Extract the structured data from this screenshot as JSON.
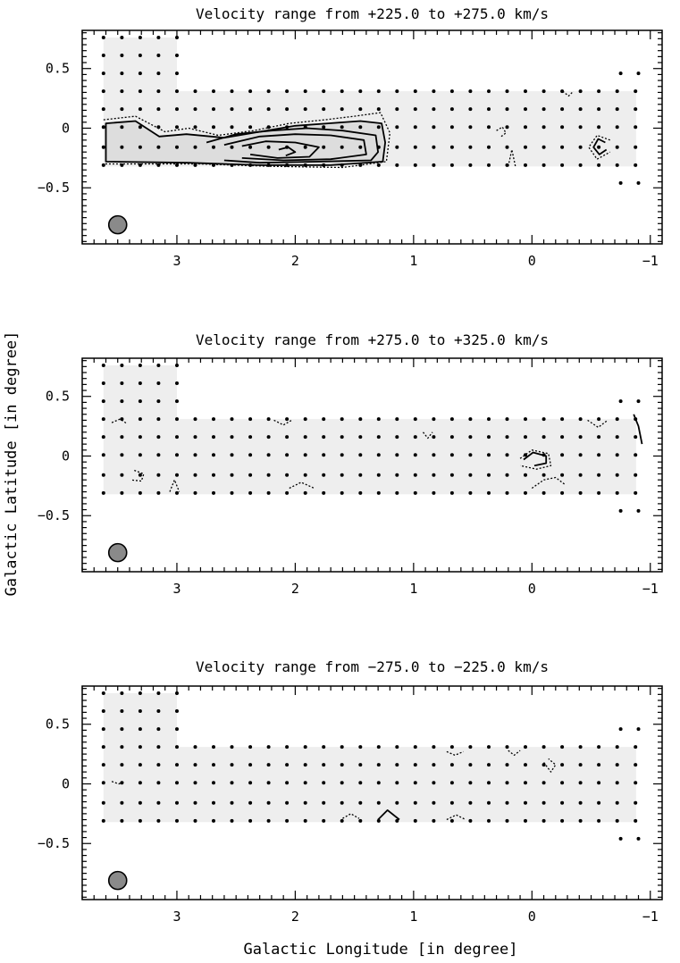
{
  "figure": {
    "xlabel": "Galactic Longitude [in degree]",
    "ylabel": "Galactic Latitude [in degree]"
  },
  "chart_data": [
    {
      "type": "contour",
      "title": "Velocity range from +225.0 to +275.0 km/s",
      "xlim": [
        3.8,
        -1.1
      ],
      "ylim": [
        -0.97,
        0.82
      ],
      "xticks": [
        "3",
        "2",
        "1",
        "0",
        "−1"
      ],
      "xtick_values": [
        3,
        2,
        1,
        0,
        -1
      ],
      "yticks": [
        "0.5",
        "0",
        "−0.5"
      ],
      "ytick_values": [
        0.5,
        0,
        -0.5
      ],
      "beam": {
        "l": 3.5,
        "b": -0.81
      }
    },
    {
      "type": "contour",
      "title": "Velocity range from +275.0 to +325.0 km/s",
      "xlim": [
        3.8,
        -1.1
      ],
      "ylim": [
        -0.97,
        0.82
      ],
      "xticks": [
        "3",
        "2",
        "1",
        "0",
        "−1"
      ],
      "xtick_values": [
        3,
        2,
        1,
        0,
        -1
      ],
      "yticks": [
        "0.5",
        "0",
        "−0.5"
      ],
      "ytick_values": [
        0.5,
        0,
        -0.5
      ],
      "beam": {
        "l": 3.5,
        "b": -0.81
      }
    },
    {
      "type": "contour",
      "title": "Velocity range from −275.0 to −225.0 km/s",
      "xlim": [
        3.8,
        -1.1
      ],
      "ylim": [
        -0.97,
        0.82
      ],
      "xticks": [
        "3",
        "2",
        "1",
        "0",
        "−1"
      ],
      "xtick_values": [
        3,
        2,
        1,
        0,
        -1
      ],
      "yticks": [
        "0.5",
        "0",
        "−0.5"
      ],
      "ytick_values": [
        0.5,
        0,
        -0.5
      ],
      "beam": {
        "l": 3.5,
        "b": -0.81
      }
    }
  ],
  "colors": {
    "coverage": "#eeeeee",
    "emission": "#dddddd",
    "beam": "#8a8a8a",
    "ink": "#000000"
  }
}
